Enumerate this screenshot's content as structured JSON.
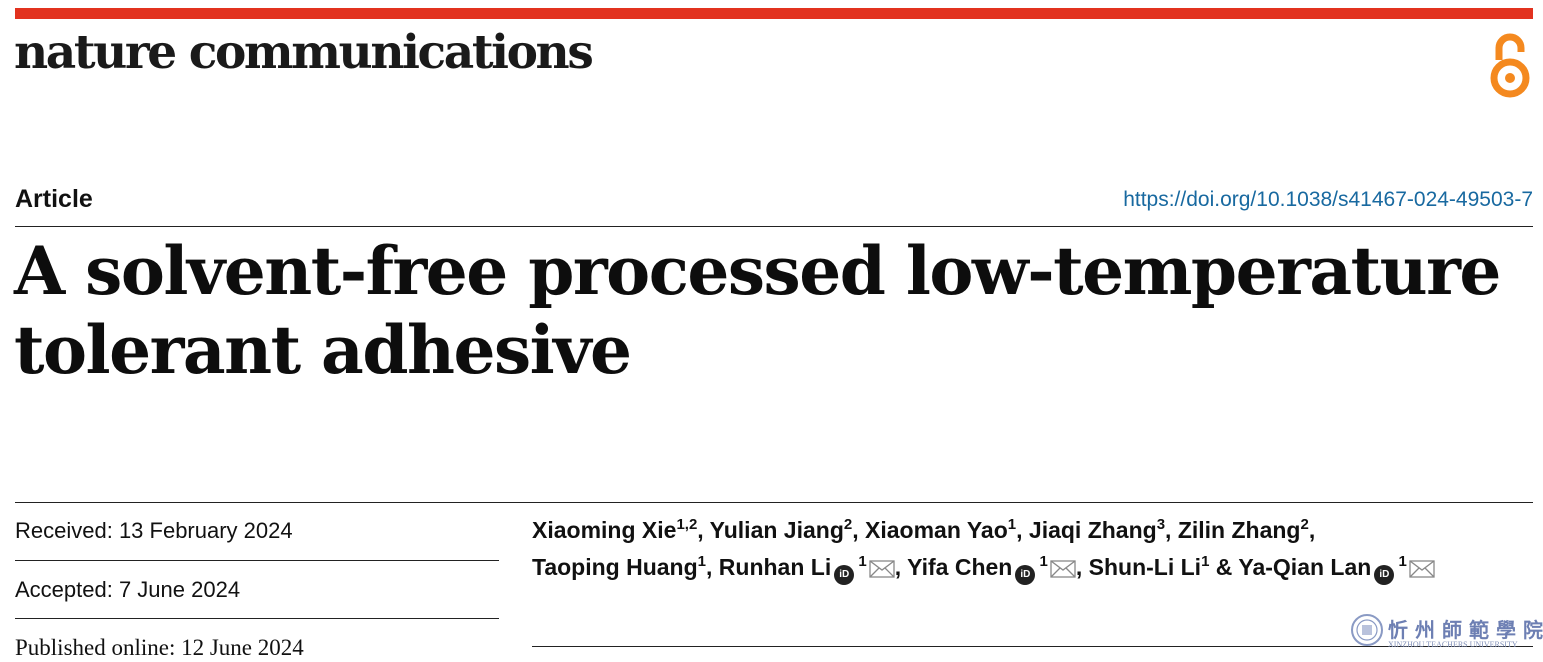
{
  "header": {
    "journal": "nature communications",
    "open_access_icon": "open-access-lock-icon",
    "accent_color": "#e2321f",
    "oa_color": "#f4891f"
  },
  "article": {
    "type": "Article",
    "doi": "https://doi.org/10.1038/s41467-024-49503-7",
    "title_line1": "A solvent-free processed low-temperature",
    "title_line2": "tolerant adhesive"
  },
  "dates": {
    "received": "Received: 13 February 2024",
    "accepted": "Accepted: 7 June 2024",
    "published": "Published online: 12 June 2024"
  },
  "authors": [
    {
      "name": "Xiaoming Xie",
      "aff": "1,2",
      "sep": ", "
    },
    {
      "name": "Yulian Jiang",
      "aff": "2",
      "sep": ", "
    },
    {
      "name": "Xiaoman Yao",
      "aff": "1",
      "sep": ", "
    },
    {
      "name": "Jiaqi Zhang",
      "aff": "3",
      "sep": ", "
    },
    {
      "name": "Zilin Zhang",
      "aff": "2",
      "sep": ","
    },
    {
      "name": "Taoping Huang",
      "aff": "1",
      "sep": ", "
    },
    {
      "name": "Runhan Li",
      "aff": "1",
      "orcid": true,
      "corresponding": true,
      "sep": ", "
    },
    {
      "name": "Yifa Chen",
      "aff": "1",
      "orcid": true,
      "corresponding": true,
      "sep": ", "
    },
    {
      "name": "Shun-Li Li",
      "aff": "1",
      "sep": " & "
    },
    {
      "name": "Ya-Qian Lan",
      "aff": "1",
      "orcid": true,
      "corresponding": true,
      "sep": ""
    }
  ],
  "orcid_label": "iD",
  "watermark": {
    "chinese": "忻州師範學院",
    "english": "XINZHOU TEACHERS UNIVERSITY"
  }
}
